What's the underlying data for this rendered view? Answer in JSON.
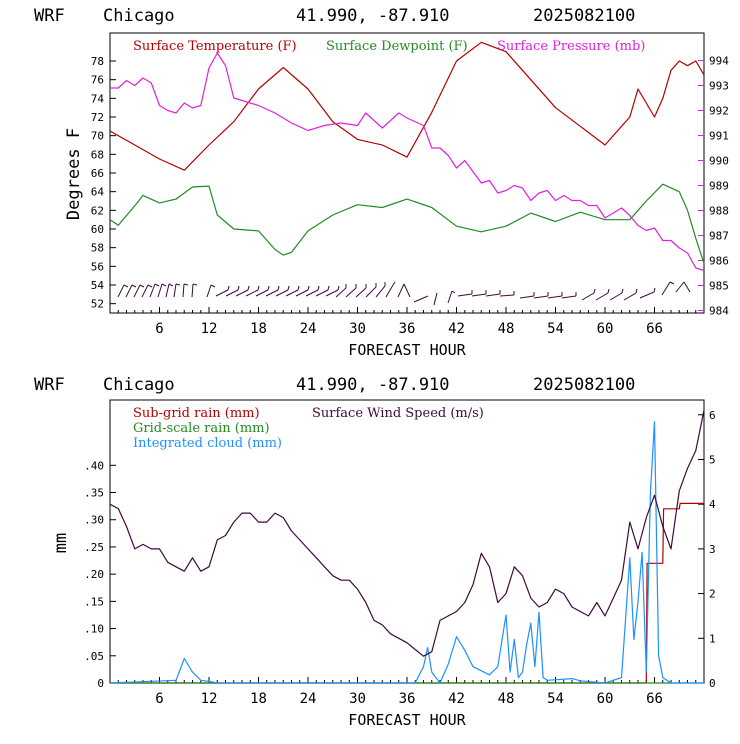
{
  "panels": [
    {
      "header": {
        "model": "WRF",
        "site": "Chicago",
        "coords": "41.990, -87.910",
        "run": "2025082100"
      },
      "chart_data": {
        "type": "line",
        "xlabel": "FORECAST HOUR",
        "ylabel": "Degrees F",
        "xlim": [
          0,
          72
        ],
        "ylim": [
          51,
          81
        ],
        "y2lim": [
          983.9,
          995.1
        ],
        "x_ticks": [
          6,
          12,
          18,
          24,
          30,
          36,
          42,
          48,
          54,
          60,
          66
        ],
        "x_tick_labels": [
          "6",
          "12",
          "18",
          "24",
          "30",
          "36",
          "42",
          "48",
          "54",
          "60",
          "66"
        ],
        "y_ticks": [
          52,
          54,
          56,
          58,
          60,
          62,
          64,
          66,
          68,
          70,
          72,
          74,
          76,
          78
        ],
        "y_tick_labels": [
          "52",
          "54",
          "56",
          "58",
          "60",
          "62",
          "64",
          "66",
          "68",
          "70",
          "72",
          "74",
          "76",
          "78"
        ],
        "y2_ticks": [
          984,
          985,
          986,
          987,
          988,
          989,
          990,
          991,
          992,
          993,
          994
        ],
        "y2_tick_labels": [
          "984",
          "985",
          "986",
          "987",
          "988",
          "989",
          "990",
          "991",
          "992",
          "993",
          "994"
        ],
        "grid": false,
        "legend_position": "top",
        "series": [
          {
            "name": "Surface Temperature (F)",
            "color": "#b30000",
            "axis": "left",
            "x": [
              0,
              3,
              6,
              9,
              12,
              15,
              18,
              21,
              24,
              27,
              30,
              33,
              36,
              39,
              42,
              45,
              48,
              51,
              54,
              57,
              60,
              63,
              64,
              66,
              67,
              68,
              69,
              70,
              71,
              72
            ],
            "y": [
              70.5,
              69,
              67.5,
              66.3,
              69,
              71.5,
              75,
              77.3,
              75,
              71.5,
              69.6,
              69,
              67.7,
              72.5,
              78,
              80,
              79,
              76,
              73,
              71,
              69,
              72,
              75,
              72,
              74,
              77,
              78,
              77.5,
              78,
              76.5
            ]
          },
          {
            "name": "Surface Dewpoint (F)",
            "color": "#228b22",
            "axis": "left",
            "x": [
              0,
              1,
              3,
              4,
              6,
              8,
              10,
              12,
              13,
              15,
              18,
              20,
              21,
              22,
              24,
              27,
              30,
              33,
              36,
              39,
              42,
              45,
              48,
              51,
              54,
              57,
              60,
              63,
              65,
              67,
              69,
              70,
              71,
              72
            ],
            "y": [
              61,
              60.4,
              62.5,
              63.6,
              62.8,
              63.2,
              64.5,
              64.6,
              61.5,
              60,
              59.8,
              57.8,
              57.2,
              57.5,
              59.8,
              61.5,
              62.6,
              62.3,
              63.2,
              62.3,
              60.3,
              59.7,
              60.3,
              61.7,
              60.8,
              61.8,
              61,
              61,
              63,
              64.8,
              64,
              62,
              59,
              56.3
            ]
          },
          {
            "name": "Surface Pressure (mb)",
            "color": "#e020e0",
            "axis": "right",
            "x": [
              0,
              1,
              2,
              3,
              4,
              5,
              6,
              7,
              8,
              9,
              10,
              11,
              12,
              13,
              14,
              15,
              17,
              18,
              20,
              22,
              24,
              26,
              28,
              30,
              31,
              33,
              35,
              36,
              38,
              39,
              40,
              41,
              42,
              43,
              45,
              46,
              47,
              48,
              49,
              50,
              51,
              52,
              53,
              54,
              55,
              56,
              57,
              58,
              59,
              60,
              61,
              62,
              63,
              64,
              65,
              66,
              67,
              68,
              69,
              70,
              71,
              72
            ],
            "y": [
              992.9,
              992.9,
              993.2,
              993,
              993.3,
              993.1,
              992.2,
              992,
              991.9,
              992.3,
              992.1,
              992.2,
              993.7,
              994.3,
              993.8,
              992.5,
              992.3,
              992.2,
              991.9,
              991.5,
              991.2,
              991.4,
              991.5,
              991.4,
              991.9,
              991.3,
              991.9,
              991.7,
              991.4,
              990.5,
              990.5,
              990.2,
              989.7,
              990,
              989.1,
              989.2,
              988.7,
              988.8,
              989,
              988.9,
              988.4,
              988.7,
              988.8,
              988.4,
              988.6,
              988.4,
              988.4,
              988.2,
              988.2,
              987.7,
              987.9,
              988.1,
              987.8,
              987.4,
              987.2,
              987.3,
              986.8,
              986.8,
              986.5,
              986.3,
              985.7,
              985.6
            ]
          }
        ]
      }
    },
    {
      "header": {
        "model": "WRF",
        "site": "Chicago",
        "coords": "41.990, -87.910",
        "run": "2025082100"
      },
      "chart_data": {
        "type": "line",
        "xlabel": "FORECAST HOUR",
        "ylabel": "mm",
        "xlim": [
          0,
          72
        ],
        "ylim": [
          0,
          0.52
        ],
        "y2lim": [
          0,
          6.33
        ],
        "x_ticks": [
          6,
          12,
          18,
          24,
          30,
          36,
          42,
          48,
          54,
          60,
          66
        ],
        "x_tick_labels": [
          "6",
          "12",
          "18",
          "24",
          "30",
          "36",
          "42",
          "48",
          "54",
          "60",
          "66"
        ],
        "y_ticks": [
          0,
          0.05,
          0.1,
          0.15,
          0.2,
          0.25,
          0.3,
          0.35,
          0.4
        ],
        "y_tick_labels": [
          "0",
          ".05",
          ".10",
          ".15",
          ".20",
          ".25",
          ".30",
          ".35",
          ".40"
        ],
        "y2_ticks": [
          0,
          1,
          2,
          3,
          4,
          5,
          6
        ],
        "y2_tick_labels": [
          "0",
          "1",
          "2",
          "3",
          "4",
          "5",
          "6"
        ],
        "grid": false,
        "legend_position": "top-left",
        "series": [
          {
            "name": "Sub-grid rain (mm)",
            "color": "#b30000",
            "axis": "left",
            "x": [
              0,
              64,
              65,
              65.1,
              67,
              67.1,
              69,
              69.1,
              72
            ],
            "y": [
              0,
              0,
              0,
              0.22,
              0.22,
              0.32,
              0.32,
              0.33,
              0.33
            ]
          },
          {
            "name": "Grid-scale rain (mm)",
            "color": "#228b22",
            "axis": "left",
            "x": [
              0,
              72
            ],
            "y": [
              0,
              0
            ]
          },
          {
            "name": "Integrated cloud (mm)",
            "color": "#1e90ff",
            "axis": "left",
            "x": [
              0,
              8,
              9,
              10,
              11,
              12,
              13,
              37,
              38,
              38.5,
              39,
              40,
              41,
              42,
              43,
              44,
              46,
              47,
              48,
              48.5,
              49,
              49.5,
              50,
              50.5,
              51,
              51.5,
              52,
              52.5,
              53,
              56,
              57,
              60,
              62,
              63,
              63.5,
              64,
              64.5,
              65,
              65.5,
              66,
              66.5,
              67,
              67.5,
              68,
              72
            ],
            "y": [
              0,
              0.005,
              0.045,
              0.02,
              0.005,
              0.003,
              0,
              0,
              0.03,
              0.065,
              0.02,
              0,
              0.035,
              0.085,
              0.06,
              0.03,
              0.015,
              0.03,
              0.125,
              0.02,
              0.08,
              0.01,
              0.02,
              0.07,
              0.11,
              0.03,
              0.13,
              0.01,
              0.005,
              0.008,
              0.004,
              0,
              0.01,
              0.23,
              0.08,
              0.15,
              0.24,
              0.02,
              0.35,
              0.48,
              0.05,
              0.01,
              0.005,
              0,
              0
            ]
          },
          {
            "name": "Surface Wind Speed (m/s)",
            "color": "#3c0a3c",
            "axis": "right",
            "x": [
              0,
              1,
              2,
              3,
              4,
              5,
              6,
              7,
              8,
              9,
              10,
              11,
              12,
              13,
              14,
              15,
              16,
              17,
              18,
              19,
              20,
              21,
              22,
              23,
              24,
              25,
              26,
              27,
              28,
              29,
              30,
              31,
              32,
              33,
              34,
              35,
              36,
              37,
              38,
              39,
              40,
              41,
              42,
              43,
              44,
              45,
              46,
              47,
              48,
              49,
              50,
              51,
              52,
              53,
              54,
              55,
              56,
              57,
              58,
              59,
              60,
              61,
              62,
              63,
              64,
              65,
              66,
              67,
              68,
              69,
              70,
              71,
              72
            ],
            "y": [
              4.0,
              3.9,
              3.5,
              3.0,
              3.1,
              3.0,
              3.0,
              2.7,
              2.6,
              2.5,
              2.8,
              2.5,
              2.6,
              3.2,
              3.3,
              3.6,
              3.8,
              3.8,
              3.6,
              3.6,
              3.8,
              3.7,
              3.4,
              3.2,
              3.0,
              2.8,
              2.6,
              2.4,
              2.3,
              2.3,
              2.1,
              1.8,
              1.4,
              1.3,
              1.1,
              1.0,
              0.9,
              0.75,
              0.6,
              0.7,
              1.4,
              1.5,
              1.6,
              1.8,
              2.2,
              2.9,
              2.6,
              1.8,
              2.0,
              2.6,
              2.4,
              1.9,
              1.7,
              1.8,
              2.1,
              2.0,
              1.7,
              1.6,
              1.5,
              1.8,
              1.5,
              1.9,
              2.3,
              3.6,
              3.0,
              3.7,
              4.2,
              3.5,
              3.0,
              4.3,
              4.8,
              5.2,
              6.1
            ]
          }
        ]
      }
    }
  ]
}
